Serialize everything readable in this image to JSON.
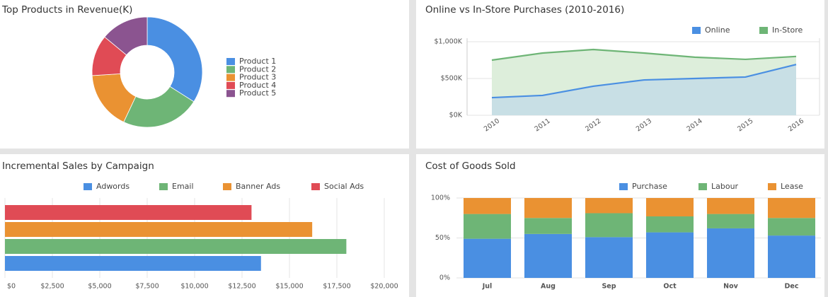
{
  "chart_data": [
    {
      "type": "pie",
      "title": "Top Products in Revenue(K)",
      "categories": [
        "Product 1",
        "Product 2",
        "Product 3",
        "Product 4",
        "Product 5"
      ],
      "values": [
        34,
        23,
        17,
        12,
        14
      ],
      "colors": [
        "#4a8fe2",
        "#6eb576",
        "#ea9232",
        "#e04b55",
        "#8b5490"
      ]
    },
    {
      "type": "area",
      "title": "Online vs In-Store Purchases (2010-2016)",
      "categories": [
        "2010",
        "2011",
        "2012",
        "2013",
        "2014",
        "2015",
        "2016"
      ],
      "series": [
        {
          "name": "Online",
          "color": "#4a8fe2",
          "values": [
            240,
            270,
            395,
            480,
            500,
            520,
            690
          ]
        },
        {
          "name": "In-Store",
          "color": "#6eb576",
          "values": [
            750,
            846,
            894,
            846,
            790,
            760,
            800
          ]
        }
      ],
      "ylim": [
        0,
        1000
      ],
      "yticks": [
        {
          "value": 0,
          "label": "$0K"
        },
        {
          "value": 500,
          "label": "$500K"
        },
        {
          "value": 1000,
          "label": "$1,000K"
        }
      ],
      "grid": true
    },
    {
      "type": "hbar",
      "title": "Incremental Sales by Campaign",
      "series": [
        {
          "name": "Adwords",
          "color": "#4a8fe2",
          "values": [
            13500
          ]
        },
        {
          "name": "Email",
          "color": "#6eb576",
          "values": [
            18000
          ]
        },
        {
          "name": "Banner Ads",
          "color": "#ea9232",
          "values": [
            16200
          ]
        },
        {
          "name": "Social Ads",
          "color": "#e04b55",
          "values": [
            13000
          ]
        }
      ],
      "xlim": [
        0,
        20000
      ],
      "xticks": [
        {
          "value": 0,
          "label": "$0"
        },
        {
          "value": 2500,
          "label": "$2,500"
        },
        {
          "value": 5000,
          "label": "$5,000"
        },
        {
          "value": 7500,
          "label": "$7,500"
        },
        {
          "value": 10000,
          "label": "$10,000"
        },
        {
          "value": 12500,
          "label": "$12,500"
        },
        {
          "value": 15000,
          "label": "$15,000"
        },
        {
          "value": 17500,
          "label": "$17,500"
        },
        {
          "value": 20000,
          "label": "$20,000"
        }
      ],
      "grid": true
    },
    {
      "type": "stacked",
      "title": "Cost of Goods Sold",
      "categories": [
        "Jul",
        "Aug",
        "Sep",
        "Oct",
        "Nov",
        "Dec"
      ],
      "series": [
        {
          "name": "Purchase",
          "color": "#4a8fe2",
          "values": [
            49,
            55,
            51,
            57,
            62,
            53
          ]
        },
        {
          "name": "Labour",
          "color": "#6eb576",
          "values": [
            31,
            20,
            30,
            20,
            18,
            22
          ]
        },
        {
          "name": "Lease",
          "color": "#ea9232",
          "values": [
            20,
            25,
            19,
            23,
            20,
            25
          ]
        }
      ],
      "ylim": [
        0,
        100
      ],
      "yticks": [
        {
          "value": 0,
          "label": "0%"
        },
        {
          "value": 50,
          "label": "50%"
        },
        {
          "value": 100,
          "label": "100%"
        }
      ],
      "grid": true
    }
  ]
}
